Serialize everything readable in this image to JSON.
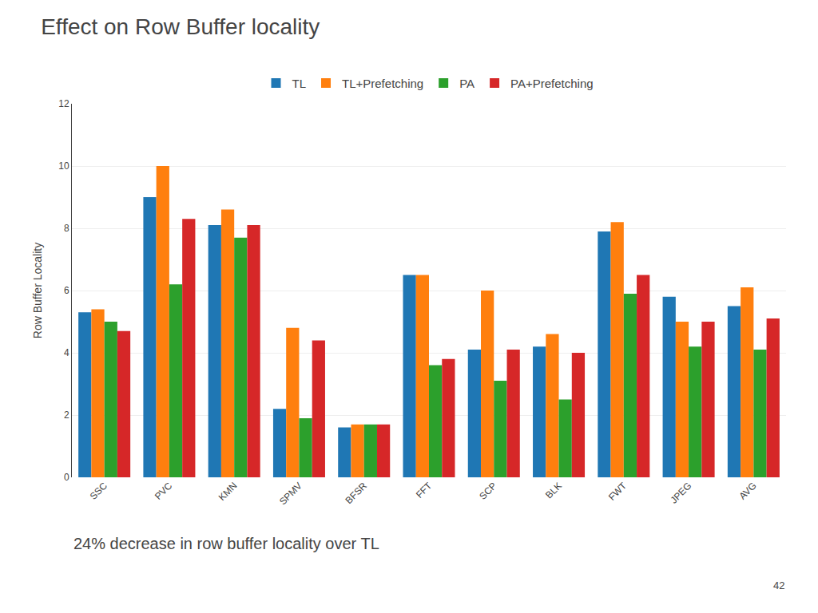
{
  "chart_data": {
    "type": "bar",
    "title": "Effect on Row Buffer locality",
    "ylabel": "Row Buffer Locality",
    "categories": [
      "SSC",
      "PVC",
      "KMN",
      "SPMV",
      "BFSR",
      "FFT",
      "SCP",
      "BLK",
      "FWT",
      "JPEG",
      "AVG"
    ],
    "series": [
      {
        "name": "TL",
        "values": [
          5.3,
          9.0,
          8.1,
          2.2,
          1.6,
          6.5,
          4.1,
          4.2,
          7.9,
          5.8,
          5.5
        ]
      },
      {
        "name": "TL+Prefetching",
        "values": [
          5.4,
          10.0,
          8.6,
          4.8,
          1.7,
          6.5,
          6.0,
          4.6,
          8.2,
          5.0,
          6.1
        ]
      },
      {
        "name": "PA",
        "values": [
          5.0,
          6.2,
          7.7,
          1.9,
          1.7,
          3.6,
          3.1,
          2.5,
          5.9,
          4.2,
          4.1
        ]
      },
      {
        "name": "PA+Prefetching",
        "values": [
          4.7,
          8.3,
          8.1,
          4.4,
          1.7,
          3.8,
          4.1,
          4.0,
          6.5,
          5.0,
          5.1
        ]
      }
    ],
    "ylim": [
      0,
      12
    ],
    "yticks": [
      0,
      2,
      4,
      6,
      8,
      10,
      12
    ],
    "grid": true,
    "legend": "top",
    "annotations": [
      "24% decrease in row buffer locality over TL",
      "42"
    ]
  }
}
